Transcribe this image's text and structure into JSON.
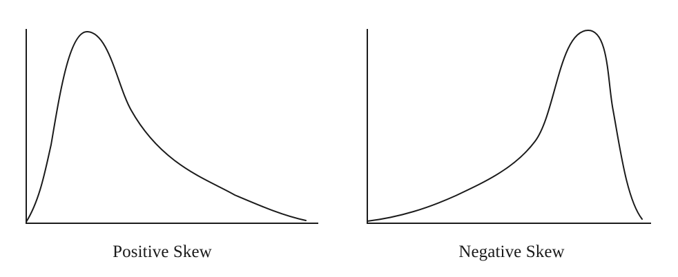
{
  "colors": {
    "background": "#ffffff",
    "stroke": "#1a1a1a"
  },
  "diagrams": [
    {
      "label": "Positive Skew",
      "skew": "positive",
      "peak_position": "left",
      "tail_direction": "right"
    },
    {
      "label": "Negative Skew",
      "skew": "negative",
      "peak_position": "right",
      "tail_direction": "left"
    }
  ]
}
